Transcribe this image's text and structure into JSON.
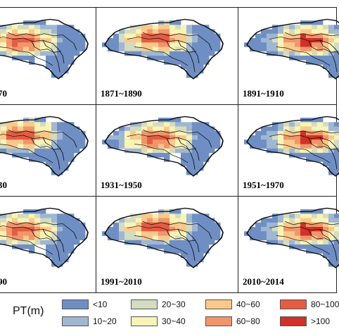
{
  "panels": [
    {
      "label": "70",
      "layer": "a"
    },
    {
      "label": "1871~1890",
      "layer": "b"
    },
    {
      "label": "1891~1910",
      "layer": "c"
    },
    {
      "label": "30",
      "layer": "b"
    },
    {
      "label": "1931~1950",
      "layer": "a"
    },
    {
      "label": "1951~1970",
      "layer": "c"
    },
    {
      "label": "90",
      "layer": "a"
    },
    {
      "label": "1991~2010",
      "layer": "b"
    },
    {
      "label": "2010~2014",
      "layer": "c"
    }
  ],
  "legend": {
    "title": "PT(m)",
    "classes": [
      {
        "label": "<10",
        "color": "#6f8fc4"
      },
      {
        "label": "10~20",
        "color": "#9fb7d2"
      },
      {
        "label": "20~30",
        "color": "#d4dcc0"
      },
      {
        "label": "30~40",
        "color": "#f8f4b6"
      },
      {
        "label": "40~60",
        "color": "#f9c98c"
      },
      {
        "label": "60~80",
        "color": "#f2956a"
      },
      {
        "label": "80~100",
        "color": "#e45c42"
      },
      {
        "label": ">100",
        "color": "#d33026"
      }
    ]
  }
}
